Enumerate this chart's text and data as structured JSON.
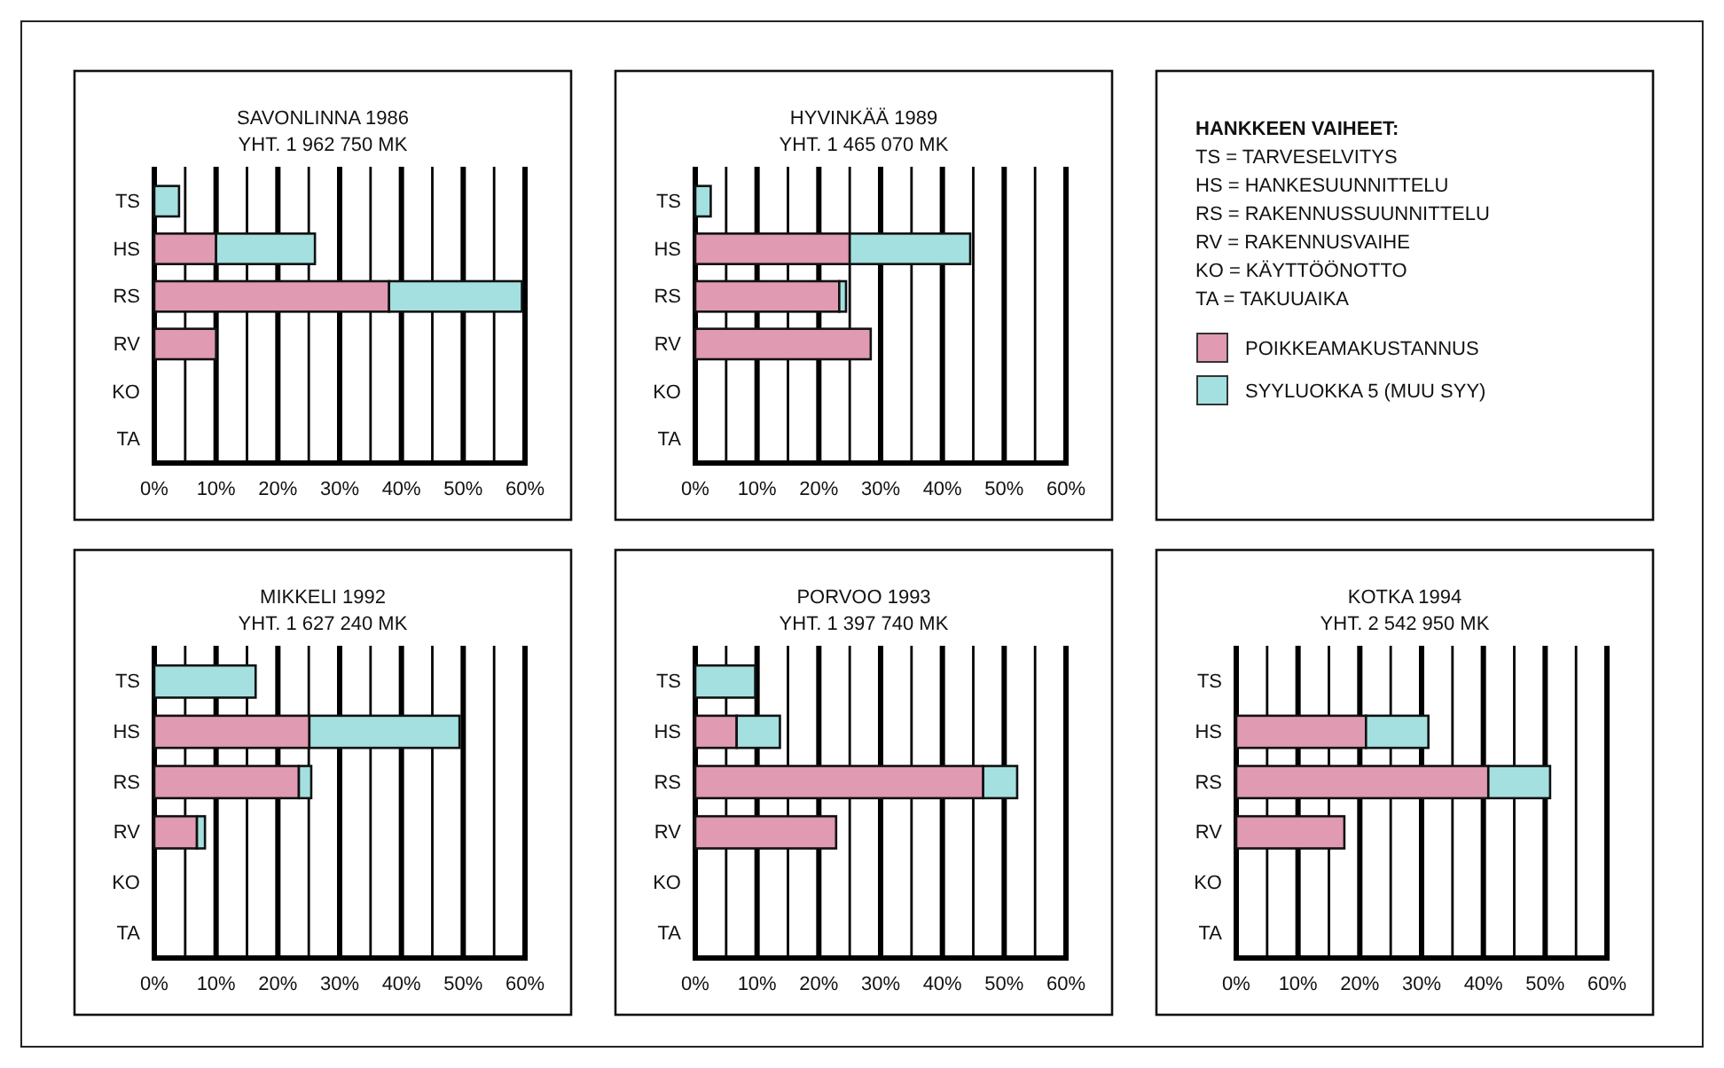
{
  "chart_data": [
    {
      "type": "bar",
      "orientation": "horizontal",
      "stacked": true,
      "title": "SAVONLINNA 1986",
      "subtitle": "YHT. 1 962 750 MK",
      "categories": [
        "TS",
        "HS",
        "RS",
        "RV",
        "KO",
        "TA"
      ],
      "series": [
        {
          "color": "#e09ab2",
          "values": [
            null,
            10,
            38,
            10,
            null,
            null
          ]
        },
        {
          "color": "#a4e0e0",
          "values": [
            4,
            16,
            21.5,
            null,
            null,
            null
          ]
        }
      ],
      "xlim": [
        0,
        60
      ],
      "xticks": [
        {
          "value": 0,
          "label": "0%"
        },
        {
          "value": 5,
          "label": null
        },
        {
          "value": 10,
          "label": "10%"
        },
        {
          "value": 15,
          "label": null
        },
        {
          "value": 20,
          "label": "20%"
        },
        {
          "value": 25,
          "label": null
        },
        {
          "value": 30,
          "label": "30%"
        },
        {
          "value": 35,
          "label": null
        },
        {
          "value": 40,
          "label": "40%"
        },
        {
          "value": 45,
          "label": null
        },
        {
          "value": 50,
          "label": "50%"
        },
        {
          "value": 55,
          "label": null
        },
        {
          "value": 60,
          "label": "60%"
        }
      ],
      "grid": "x"
    },
    {
      "type": "bar",
      "orientation": "horizontal",
      "stacked": true,
      "title": "HYVINKÄÄ 1989",
      "subtitle": "YHT. 1 465 070 MK",
      "categories": [
        "TS",
        "HS",
        "RS",
        "RV",
        "KO",
        "TA"
      ],
      "series": [
        {
          "color": "#e09ab2",
          "values": [
            null,
            25,
            23.3,
            28.4,
            null,
            null
          ]
        },
        {
          "color": "#a4e0e0",
          "values": [
            2.5,
            19.5,
            1.1,
            null,
            null,
            null
          ]
        }
      ],
      "xlim": [
        0,
        60
      ],
      "xticks": [
        {
          "value": 0,
          "label": "0%"
        },
        {
          "value": 5,
          "label": null
        },
        {
          "value": 10,
          "label": "10%"
        },
        {
          "value": 15,
          "label": null
        },
        {
          "value": 20,
          "label": "20%"
        },
        {
          "value": 25,
          "label": null
        },
        {
          "value": 30,
          "label": "30%"
        },
        {
          "value": 35,
          "label": null
        },
        {
          "value": 40,
          "label": "40%"
        },
        {
          "value": 45,
          "label": null
        },
        {
          "value": 50,
          "label": "50%"
        },
        {
          "value": 55,
          "label": null
        },
        {
          "value": 60,
          "label": "60%"
        }
      ],
      "grid": "x"
    },
    {
      "type": "other",
      "title": "HANKKEEN VAIHEET:",
      "annotations": [
        "TS = TARVESELVITYS",
        "HS = HANKESUUNNITTELU",
        "RS = RAKENNUSSUUNNITTELU",
        "RV = RAKENNUSVAIHE",
        "KO = KÄYTTÖÖNOTTO",
        "TA = TAKUUAIKA"
      ],
      "series": [
        {
          "name": "POIKKEAMAKUSTANNUS",
          "color": "#e09ab2"
        },
        {
          "name": "SYYLUOKKA 5 (MUU SYY)",
          "color": "#a4e0e0"
        }
      ]
    },
    {
      "type": "bar",
      "orientation": "horizontal",
      "stacked": true,
      "title": "MIKKELI 1992",
      "subtitle": "YHT. 1 627 240 MK",
      "categories": [
        "TS",
        "HS",
        "RS",
        "RV",
        "KO",
        "TA"
      ],
      "series": [
        {
          "color": "#e09ab2",
          "values": [
            null,
            25.1,
            23.4,
            6.9,
            null,
            null
          ]
        },
        {
          "color": "#a4e0e0",
          "values": [
            16.4,
            24.3,
            2,
            1.3,
            null,
            null
          ]
        }
      ],
      "xlim": [
        0,
        60
      ],
      "xticks": [
        {
          "value": 0,
          "label": "0%"
        },
        {
          "value": 5,
          "label": null
        },
        {
          "value": 10,
          "label": "10%"
        },
        {
          "value": 15,
          "label": null
        },
        {
          "value": 20,
          "label": "20%"
        },
        {
          "value": 25,
          "label": null
        },
        {
          "value": 30,
          "label": "30%"
        },
        {
          "value": 35,
          "label": null
        },
        {
          "value": 40,
          "label": "40%"
        },
        {
          "value": 45,
          "label": null
        },
        {
          "value": 50,
          "label": "50%"
        },
        {
          "value": 55,
          "label": null
        },
        {
          "value": 60,
          "label": "60%"
        }
      ],
      "grid": "x"
    },
    {
      "type": "bar",
      "orientation": "horizontal",
      "stacked": true,
      "title": "PORVOO 1993",
      "subtitle": "YHT. 1 397 740 MK",
      "categories": [
        "TS",
        "HS",
        "RS",
        "RV",
        "KO",
        "TA"
      ],
      "series": [
        {
          "color": "#e09ab2",
          "values": [
            null,
            6.7,
            46.6,
            22.8,
            null,
            null
          ]
        },
        {
          "color": "#a4e0e0",
          "values": [
            9.7,
            7,
            5.5,
            null,
            null,
            null
          ]
        }
      ],
      "xlim": [
        0,
        60
      ],
      "xticks": [
        {
          "value": 0,
          "label": "0%"
        },
        {
          "value": 5,
          "label": null
        },
        {
          "value": 10,
          "label": "10%"
        },
        {
          "value": 15,
          "label": null
        },
        {
          "value": 20,
          "label": "20%"
        },
        {
          "value": 25,
          "label": null
        },
        {
          "value": 30,
          "label": "30%"
        },
        {
          "value": 35,
          "label": null
        },
        {
          "value": 40,
          "label": "40%"
        },
        {
          "value": 45,
          "label": null
        },
        {
          "value": 50,
          "label": "50%"
        },
        {
          "value": 55,
          "label": null
        },
        {
          "value": 60,
          "label": "60%"
        }
      ],
      "grid": "x"
    },
    {
      "type": "bar",
      "orientation": "horizontal",
      "stacked": true,
      "title": "KOTKA 1994",
      "subtitle": "YHT. 2 542 950 MK",
      "categories": [
        "TS",
        "HS",
        "RS",
        "RV",
        "KO",
        "TA"
      ],
      "series": [
        {
          "color": "#e09ab2",
          "values": [
            null,
            21,
            40.8,
            17.5,
            null,
            null
          ]
        },
        {
          "color": "#a4e0e0",
          "values": [
            null,
            10.1,
            10,
            null,
            null,
            null
          ]
        }
      ],
      "xlim": [
        0,
        60
      ],
      "xticks": [
        {
          "value": 0,
          "label": "0%"
        },
        {
          "value": 5,
          "label": null
        },
        {
          "value": 10,
          "label": "10%"
        },
        {
          "value": 15,
          "label": null
        },
        {
          "value": 20,
          "label": "20%"
        },
        {
          "value": 25,
          "label": null
        },
        {
          "value": 30,
          "label": "30%"
        },
        {
          "value": 35,
          "label": null
        },
        {
          "value": 40,
          "label": "40%"
        },
        {
          "value": 45,
          "label": null
        },
        {
          "value": 50,
          "label": "50%"
        },
        {
          "value": 55,
          "label": null
        },
        {
          "value": 60,
          "label": "60%"
        }
      ],
      "grid": "x"
    }
  ]
}
